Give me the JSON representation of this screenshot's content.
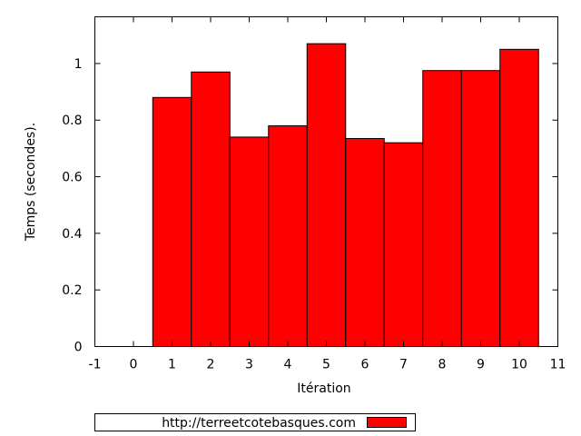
{
  "chart_data": {
    "type": "bar",
    "title": "",
    "xlabel": "Itération",
    "ylabel": "Temps (secondes).",
    "x": [
      1,
      2,
      3,
      4,
      5,
      6,
      7,
      8,
      9,
      10
    ],
    "series": [
      {
        "name": "http://terreetcotebasques.com",
        "values": [
          0.88,
          0.97,
          0.74,
          0.78,
          1.07,
          0.735,
          0.72,
          0.975,
          0.975,
          1.05
        ],
        "color": "#ff0000"
      }
    ],
    "xlim": [
      -1,
      11
    ],
    "ylim": [
      0,
      1.165
    ],
    "xticks": [
      -1,
      0,
      1,
      2,
      3,
      4,
      5,
      6,
      7,
      8,
      9,
      10,
      11
    ],
    "yticks": [
      0,
      0.2,
      0.4,
      0.6,
      0.8,
      1
    ],
    "ytick_labels": [
      "0",
      "0.2",
      "0.4",
      "0.6",
      "0.8",
      "1"
    ],
    "bar_width": 1,
    "grid": false,
    "legend_position": "bottom-center"
  }
}
